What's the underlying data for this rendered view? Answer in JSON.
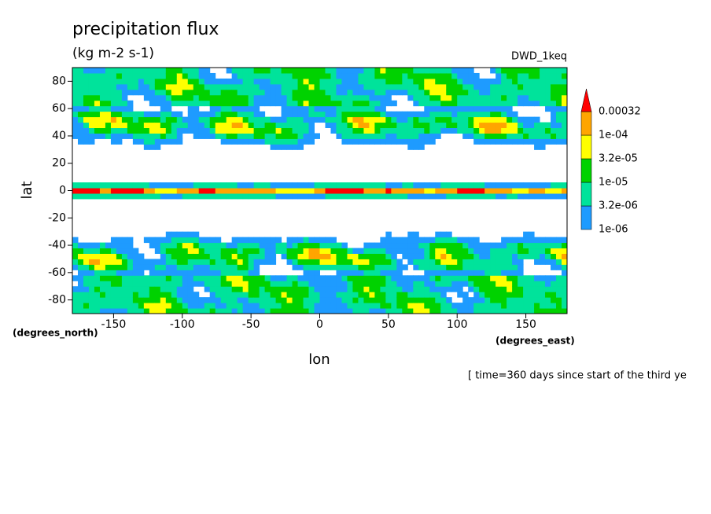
{
  "chart_data": {
    "type": "contour",
    "title": "precipitation flux",
    "subtitle": "(kg m-2 s-1)",
    "annotation": "DWD_1keq",
    "x_label": "lon",
    "y_label": "lat",
    "x_units": "(degrees_east)",
    "y_units": "(degrees_north)",
    "footnote": "[ time=360 days since start of the third ye",
    "xlim": [
      -180,
      180
    ],
    "ylim": [
      -90,
      90
    ],
    "xticks": [
      -150,
      -100,
      -50,
      0,
      50,
      100,
      150
    ],
    "yticks": [
      -80,
      -60,
      -40,
      -20,
      0,
      20,
      40,
      60,
      80
    ],
    "levels": [
      {
        "value": 1e-06,
        "label": "1e-06"
      },
      {
        "value": 3.2e-06,
        "label": "3.2e-06"
      },
      {
        "value": 1e-05,
        "label": "1e-05"
      },
      {
        "value": 3.2e-05,
        "label": "3.2e-05"
      },
      {
        "value": 0.0001,
        "label": "1e-04"
      },
      0.00032
    ],
    "colors": [
      "#1e9bff",
      "#00e39b",
      "#00d200",
      "#ffff00",
      "#ffa500",
      "#ff0000"
    ]
  }
}
